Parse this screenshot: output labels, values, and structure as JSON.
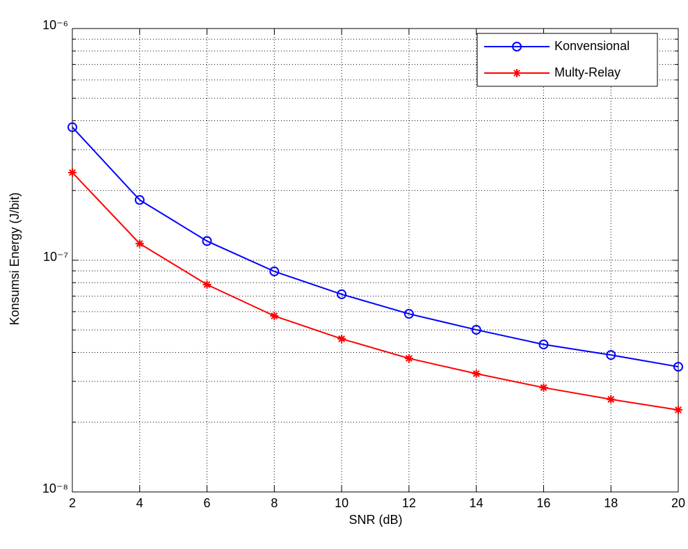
{
  "chart_data": {
    "type": "line",
    "x_label": "SNR (dB)",
    "y_label": "Konsumsi Energy (J/bit)",
    "x": [
      2,
      4,
      6,
      8,
      10,
      12,
      14,
      16,
      18,
      20
    ],
    "series": [
      {
        "name": "Konvensional",
        "color": "#0000ff",
        "marker": "circle",
        "values": [
          3.75e-07,
          1.82e-07,
          1.21e-07,
          8.95e-08,
          7.13e-08,
          5.87e-08,
          5.01e-08,
          4.33e-08,
          3.9e-08,
          3.47e-08
        ]
      },
      {
        "name": "Multy-Relay",
        "color": "#ff0000",
        "marker": "asterisk",
        "values": [
          2.39e-07,
          1.18e-07,
          7.85e-08,
          5.75e-08,
          4.58e-08,
          3.77e-08,
          3.24e-08,
          2.82e-08,
          2.51e-08,
          2.26e-08
        ]
      }
    ],
    "xlim": [
      2,
      20
    ],
    "xticks": [
      2,
      4,
      6,
      8,
      10,
      12,
      14,
      16,
      18,
      20
    ],
    "ylim": [
      1e-08,
      1e-06
    ],
    "y_scale": "log",
    "yticks": [
      {
        "value": 1e-08,
        "label": "10⁻⁸"
      },
      {
        "value": 1e-07,
        "label": "10⁻⁷"
      },
      {
        "value": 1e-06,
        "label": "10⁻⁶"
      }
    ],
    "yminorticks": [
      2e-08,
      3e-08,
      4e-08,
      5e-08,
      6e-08,
      7e-08,
      8e-08,
      9e-08,
      2e-07,
      3e-07,
      4e-07,
      5e-07,
      6e-07,
      7e-07,
      8e-07,
      9e-07
    ],
    "grid": true,
    "legend": "top-right"
  }
}
